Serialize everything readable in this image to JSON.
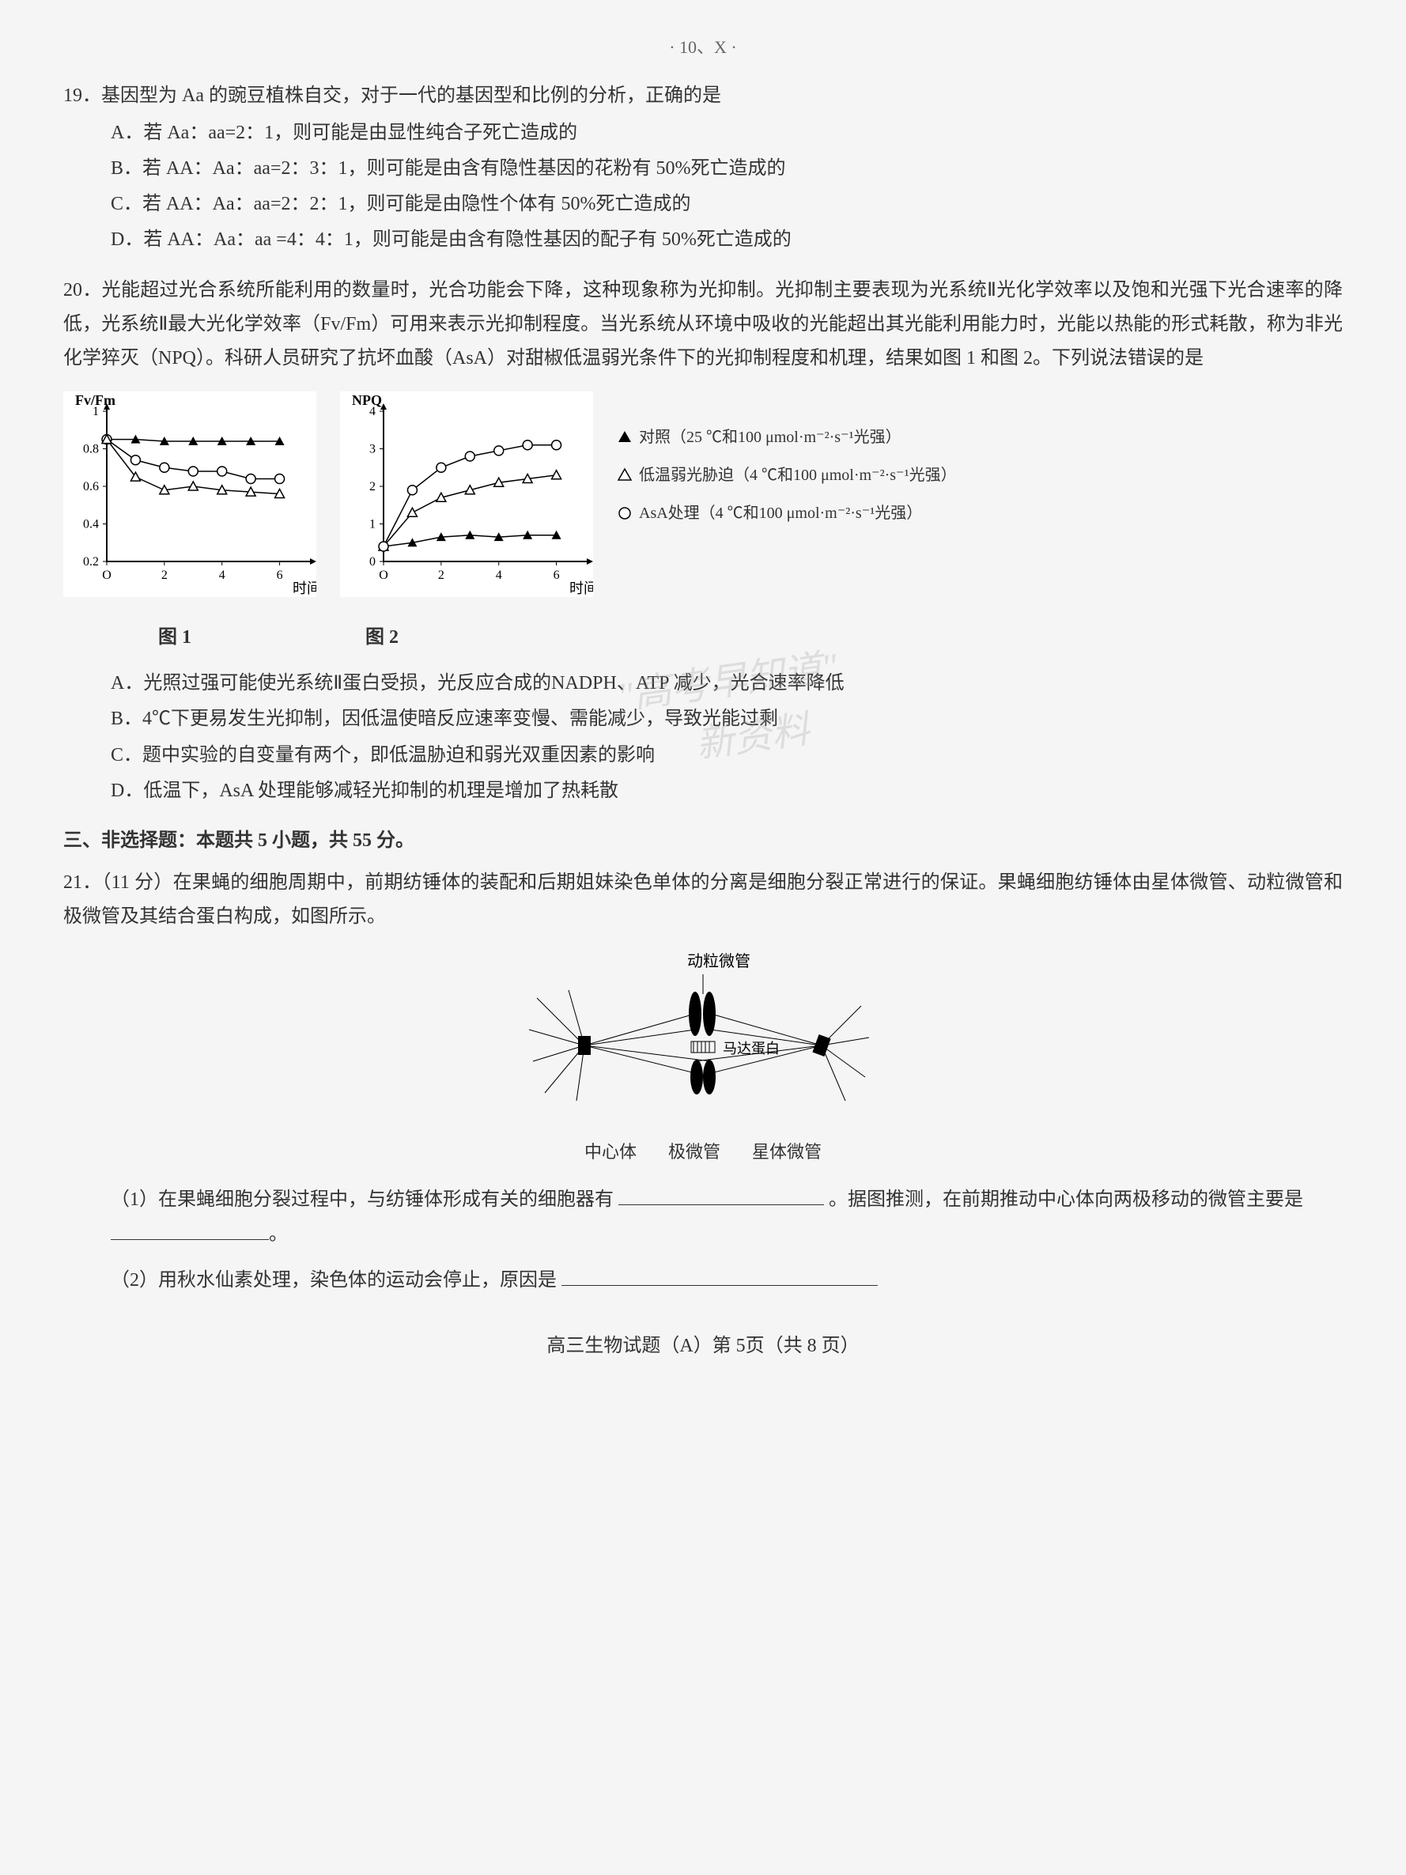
{
  "headerMark": "·  10、X  ·",
  "q19": {
    "stem": "19．基因型为 Aa 的豌豆植株自交，对于一代的基因型和比例的分析，正确的是",
    "optA": "A．若 Aa：aa=2：1，则可能是由显性纯合子死亡造成的",
    "optB": "B．若 AA：Aa：aa=2：3：1，则可能是由含有隐性基因的花粉有 50%死亡造成的",
    "optC": "C．若 AA：Aa：aa=2：2：1，则可能是由隐性个体有 50%死亡造成的",
    "optD": "D．若 AA：Aa：aa =4：4：1，则可能是由含有隐性基因的配子有 50%死亡造成的"
  },
  "q20": {
    "stem": "20．光能超过光合系统所能利用的数量时，光合功能会下降，这种现象称为光抑制。光抑制主要表现为光系统Ⅱ光化学效率以及饱和光强下光合速率的降低，光系统Ⅱ最大光化学效率（Fv/Fm）可用来表示光抑制程度。当光系统从环境中吸收的光能超出其光能利用能力时，光能以热能的形式耗散，称为非光化学猝灭（NPQ）。科研人员研究了抗坏血酸（AsA）对甜椒低温弱光条件下的光抑制程度和机理，结果如图 1 和图 2。下列说法错误的是",
    "optA": "A．光照过强可能使光系统Ⅱ蛋白受损，光反应合成的NADPH、ATP 减少，光合速率降低",
    "optB": "B．4℃下更易发生光抑制，因低温使暗反应速率变慢、需能减少，导致光能过剩",
    "optC": "C．题中实验的自变量有两个，即低温胁迫和弱光双重因素的影响",
    "optD": "D．低温下，AsA 处理能够减轻光抑制的机理是增加了热耗散"
  },
  "chart1": {
    "type": "line-scatter",
    "ylabel": "Fv/Fm",
    "xlabel": "时间(h)",
    "ylim": [
      0.2,
      1.0
    ],
    "yticks": [
      0.2,
      0.4,
      0.6,
      0.8,
      1.0
    ],
    "xlim": [
      0,
      7
    ],
    "xticks": [
      0,
      2,
      4,
      6
    ],
    "series": [
      {
        "marker": "triangle-filled",
        "color": "#000000",
        "points": [
          [
            0,
            0.85
          ],
          [
            1,
            0.85
          ],
          [
            2,
            0.84
          ],
          [
            3,
            0.84
          ],
          [
            4,
            0.84
          ],
          [
            5,
            0.84
          ],
          [
            6,
            0.84
          ]
        ]
      },
      {
        "marker": "circle-open",
        "color": "#000000",
        "points": [
          [
            0,
            0.85
          ],
          [
            1,
            0.74
          ],
          [
            2,
            0.7
          ],
          [
            3,
            0.68
          ],
          [
            4,
            0.68
          ],
          [
            5,
            0.64
          ],
          [
            6,
            0.64
          ]
        ]
      },
      {
        "marker": "triangle-open",
        "color": "#000000",
        "points": [
          [
            0,
            0.85
          ],
          [
            1,
            0.65
          ],
          [
            2,
            0.58
          ],
          [
            3,
            0.6
          ],
          [
            4,
            0.58
          ],
          [
            5,
            0.57
          ],
          [
            6,
            0.56
          ]
        ]
      }
    ],
    "background": "#ffffff",
    "axis_color": "#000000",
    "label": "图 1"
  },
  "chart2": {
    "type": "line-scatter",
    "ylabel": "NPQ",
    "xlabel": "时间(h)",
    "ylim": [
      0,
      4
    ],
    "yticks": [
      0,
      1,
      2,
      3,
      4
    ],
    "xlim": [
      0,
      7
    ],
    "xticks": [
      0,
      2,
      4,
      6
    ],
    "series": [
      {
        "marker": "triangle-filled",
        "color": "#000000",
        "points": [
          [
            0,
            0.4
          ],
          [
            1,
            0.5
          ],
          [
            2,
            0.65
          ],
          [
            3,
            0.7
          ],
          [
            4,
            0.65
          ],
          [
            5,
            0.7
          ],
          [
            6,
            0.7
          ]
        ]
      },
      {
        "marker": "triangle-open",
        "color": "#000000",
        "points": [
          [
            0,
            0.4
          ],
          [
            1,
            1.3
          ],
          [
            2,
            1.7
          ],
          [
            3,
            1.9
          ],
          [
            4,
            2.1
          ],
          [
            5,
            2.2
          ],
          [
            6,
            2.3
          ]
        ]
      },
      {
        "marker": "circle-open",
        "color": "#000000",
        "points": [
          [
            0,
            0.4
          ],
          [
            1,
            1.9
          ],
          [
            2,
            2.5
          ],
          [
            3,
            2.8
          ],
          [
            4,
            2.95
          ],
          [
            5,
            3.1
          ],
          [
            6,
            3.1
          ]
        ]
      }
    ],
    "background": "#ffffff",
    "axis_color": "#000000",
    "label": "图 2"
  },
  "legend": {
    "items": [
      {
        "marker": "triangle-filled",
        "text": "对照（25 ℃和100 μmol·m⁻²·s⁻¹光强）"
      },
      {
        "marker": "triangle-open",
        "text": "低温弱光胁迫（4 ℃和100 μmol·m⁻²·s⁻¹光强）"
      },
      {
        "marker": "circle-open",
        "text": "AsA处理（4 ℃和100 μmol·m⁻²·s⁻¹光强）"
      }
    ]
  },
  "watermark1": "\"高考早知道\"",
  "watermark2": "新资料",
  "section3Title": "三、非选择题：本题共 5 小题，共 55 分。",
  "q21": {
    "stem": "21．（11 分）在果蝇的细胞周期中，前期纺锤体的装配和后期姐妹染色单体的分离是细胞分裂正常进行的保证。果蝇细胞纺锤体由星体微管、动粒微管和极微管及其结合蛋白构成，如图所示。",
    "diagramLabels": {
      "top": "动粒微管",
      "motor": "马达蛋白",
      "left": "中心体",
      "polar": "极微管",
      "right": "星体微管"
    },
    "sub1a": "（1）在果蝇细胞分裂过程中，与纺锤体形成有关的细胞器有",
    "sub1b": "。据图推测，在前期推动中心体向两极移动的微管主要是",
    "sub2": "（2）用秋水仙素处理，染色体的运动会停止，原因是"
  },
  "footer": "高三生物试题（A）第 5页（共 8 页）"
}
